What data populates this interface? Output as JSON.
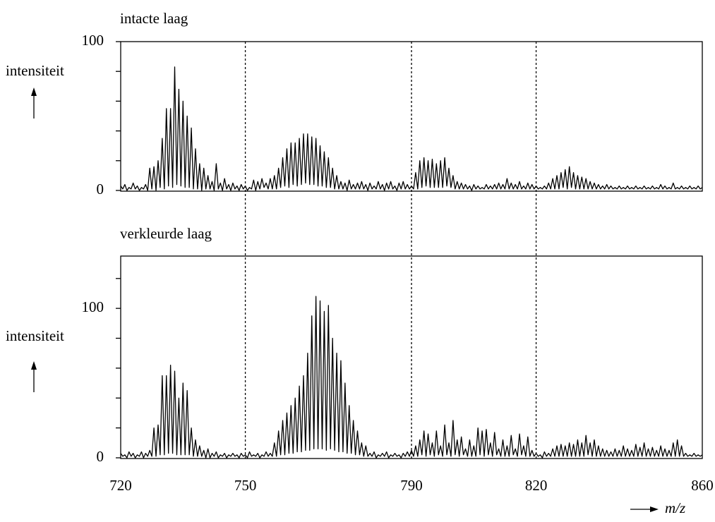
{
  "chart_data": [
    {
      "type": "line",
      "title": "intacte laag",
      "ylabel": "intensiteit",
      "xlim": [
        720,
        860
      ],
      "ylim": [
        0,
        100
      ],
      "yticks": [
        0,
        100
      ],
      "minor_yticks": [
        20,
        40,
        60,
        80
      ],
      "x": [
        720,
        720.5,
        721,
        721.5,
        722,
        722.5,
        723,
        723.5,
        724,
        724.5,
        725,
        725.5,
        726,
        726.5,
        727,
        727.5,
        728,
        728.5,
        729,
        729.5,
        730,
        730.5,
        731,
        731.5,
        732,
        732.5,
        733,
        733.5,
        734,
        734.5,
        735,
        735.5,
        736,
        736.5,
        737,
        737.5,
        738,
        738.5,
        739,
        739.5,
        740,
        740.5,
        741,
        741.5,
        742,
        742.5,
        743,
        743.5,
        744,
        744.5,
        745,
        745.5,
        746,
        746.5,
        747,
        747.5,
        748,
        748.5,
        749,
        749.5,
        750,
        750.5,
        751,
        751.5,
        752,
        752.5,
        753,
        753.5,
        754,
        754.5,
        755,
        755.5,
        756,
        756.5,
        757,
        757.5,
        758,
        758.5,
        759,
        759.5,
        760,
        760.5,
        761,
        761.5,
        762,
        762.5,
        763,
        763.5,
        764,
        764.5,
        765,
        765.5,
        766,
        766.5,
        767,
        767.5,
        768,
        768.5,
        769,
        769.5,
        770,
        770.5,
        771,
        771.5,
        772,
        772.5,
        773,
        773.5,
        774,
        774.5,
        775,
        775.5,
        776,
        776.5,
        777,
        777.5,
        778,
        778.5,
        779,
        779.5,
        780,
        780.5,
        781,
        781.5,
        782,
        782.5,
        783,
        783.5,
        784,
        784.5,
        785,
        785.5,
        786,
        786.5,
        787,
        787.5,
        788,
        788.5,
        789,
        789.5,
        790,
        790.5,
        791,
        791.5,
        792,
        792.5,
        793,
        793.5,
        794,
        794.5,
        795,
        795.5,
        796,
        796.5,
        797,
        797.5,
        798,
        798.5,
        799,
        799.5,
        800,
        800.5,
        801,
        801.5,
        802,
        802.5,
        803,
        803.5,
        804,
        804.5,
        805,
        805.5,
        806,
        806.5,
        807,
        807.5,
        808,
        808.5,
        809,
        809.5,
        810,
        810.5,
        811,
        811.5,
        812,
        812.5,
        813,
        813.5,
        814,
        814.5,
        815,
        815.5,
        816,
        816.5,
        817,
        817.5,
        818,
        818.5,
        819,
        819.5,
        820,
        820.5,
        821,
        821.5,
        822,
        822.5,
        823,
        823.5,
        824,
        824.5,
        825,
        825.5,
        826,
        826.5,
        827,
        827.5,
        828,
        828.5,
        829,
        829.5,
        830,
        830.5,
        831,
        831.5,
        832,
        832.5,
        833,
        833.5,
        834,
        834.5,
        835,
        835.5,
        836,
        836.5,
        837,
        837.5,
        838,
        838.5,
        839,
        839.5,
        840,
        840.5,
        841,
        841.5,
        842,
        842.5,
        843,
        843.5,
        844,
        844.5,
        845,
        845.5,
        846,
        846.5,
        847,
        847.5,
        848,
        848.5,
        849,
        849.5,
        850,
        850.5,
        851,
        851.5,
        852,
        852.5,
        853,
        853.5,
        854,
        854.5,
        855,
        855.5,
        856,
        856.5,
        857,
        857.5,
        858,
        858.5,
        859,
        859.5,
        860
      ],
      "series": [
        {
          "color": "#000000",
          "values": [
            3,
            1,
            4,
            0,
            2,
            1,
            5,
            1,
            3,
            0,
            2,
            1,
            4,
            0,
            15,
            1,
            16,
            0,
            20,
            2,
            35,
            1,
            55,
            3,
            55,
            2,
            83,
            4,
            68,
            3,
            60,
            2,
            50,
            2,
            42,
            1,
            28,
            1,
            18,
            0,
            15,
            1,
            10,
            1,
            6,
            0,
            18,
            1,
            5,
            0,
            8,
            1,
            4,
            0,
            5,
            1,
            3,
            0,
            4,
            1,
            3,
            0,
            2,
            1,
            7,
            0,
            6,
            1,
            8,
            2,
            5,
            1,
            8,
            1,
            10,
            1,
            15,
            2,
            22,
            3,
            28,
            2,
            32,
            4,
            32,
            3,
            35,
            4,
            38,
            5,
            38,
            4,
            36,
            4,
            35,
            3,
            30,
            3,
            26,
            2,
            22,
            2,
            15,
            1,
            10,
            1,
            6,
            1,
            5,
            0,
            7,
            1,
            4,
            1,
            5,
            1,
            6,
            1,
            4,
            0,
            5,
            1,
            3,
            1,
            6,
            1,
            4,
            0,
            5,
            1,
            6,
            1,
            3,
            0,
            5,
            1,
            6,
            1,
            4,
            1,
            3,
            1,
            12,
            1,
            20,
            2,
            22,
            3,
            20,
            2,
            21,
            2,
            18,
            2,
            20,
            2,
            22,
            3,
            15,
            2,
            10,
            1,
            6,
            1,
            5,
            1,
            4,
            1,
            3,
            0,
            4,
            1,
            3,
            1,
            2,
            1,
            4,
            1,
            3,
            1,
            4,
            1,
            5,
            1,
            4,
            1,
            8,
            1,
            5,
            1,
            4,
            1,
            6,
            1,
            3,
            1,
            5,
            1,
            4,
            1,
            3,
            1,
            2,
            1,
            3,
            1,
            5,
            1,
            8,
            1,
            10,
            1,
            12,
            2,
            14,
            1,
            16,
            2,
            12,
            1,
            10,
            1,
            9,
            1,
            8,
            1,
            6,
            1,
            5,
            1,
            4,
            1,
            3,
            1,
            4,
            1,
            3,
            1,
            2,
            1,
            3,
            1,
            2,
            1,
            3,
            1,
            2,
            1,
            3,
            1,
            2,
            1,
            3,
            1,
            2,
            1,
            3,
            1,
            2,
            1,
            4,
            1,
            3,
            1,
            2,
            1,
            5,
            1,
            2,
            1,
            3,
            1,
            2,
            1,
            3,
            1,
            2,
            1,
            3,
            1,
            2
          ]
        }
      ]
    },
    {
      "type": "line",
      "title": "verkleurde laag",
      "ylabel": "intensiteit",
      "xlabel": "m/z",
      "xlim": [
        720,
        860
      ],
      "xticks": [
        720,
        750,
        790,
        820,
        860
      ],
      "vlines": [
        750,
        790,
        820
      ],
      "ylim": [
        0,
        135
      ],
      "yticks": [
        0,
        100
      ],
      "minor_yticks": [
        20,
        40,
        60,
        80,
        120
      ],
      "x": [
        720,
        720.5,
        721,
        721.5,
        722,
        722.5,
        723,
        723.5,
        724,
        724.5,
        725,
        725.5,
        726,
        726.5,
        727,
        727.5,
        728,
        728.5,
        729,
        729.5,
        730,
        730.5,
        731,
        731.5,
        732,
        732.5,
        733,
        733.5,
        734,
        734.5,
        735,
        735.5,
        736,
        736.5,
        737,
        737.5,
        738,
        738.5,
        739,
        739.5,
        740,
        740.5,
        741,
        741.5,
        742,
        742.5,
        743,
        743.5,
        744,
        744.5,
        745,
        745.5,
        746,
        746.5,
        747,
        747.5,
        748,
        748.5,
        749,
        749.5,
        750,
        750.5,
        751,
        751.5,
        752,
        752.5,
        753,
        753.5,
        754,
        754.5,
        755,
        755.5,
        756,
        756.5,
        757,
        757.5,
        758,
        758.5,
        759,
        759.5,
        760,
        760.5,
        761,
        761.5,
        762,
        762.5,
        763,
        763.5,
        764,
        764.5,
        765,
        765.5,
        766,
        766.5,
        767,
        767.5,
        768,
        768.5,
        769,
        769.5,
        770,
        770.5,
        771,
        771.5,
        772,
        772.5,
        773,
        773.5,
        774,
        774.5,
        775,
        775.5,
        776,
        776.5,
        777,
        777.5,
        778,
        778.5,
        779,
        779.5,
        780,
        780.5,
        781,
        781.5,
        782,
        782.5,
        783,
        783.5,
        784,
        784.5,
        785,
        785.5,
        786,
        786.5,
        787,
        787.5,
        788,
        788.5,
        789,
        789.5,
        790,
        790.5,
        791,
        791.5,
        792,
        792.5,
        793,
        793.5,
        794,
        794.5,
        795,
        795.5,
        796,
        796.5,
        797,
        797.5,
        798,
        798.5,
        799,
        799.5,
        800,
        800.5,
        801,
        801.5,
        802,
        802.5,
        803,
        803.5,
        804,
        804.5,
        805,
        805.5,
        806,
        806.5,
        807,
        807.5,
        808,
        808.5,
        809,
        809.5,
        810,
        810.5,
        811,
        811.5,
        812,
        812.5,
        813,
        813.5,
        814,
        814.5,
        815,
        815.5,
        816,
        816.5,
        817,
        817.5,
        818,
        818.5,
        819,
        819.5,
        820,
        820.5,
        821,
        821.5,
        822,
        822.5,
        823,
        823.5,
        824,
        824.5,
        825,
        825.5,
        826,
        826.5,
        827,
        827.5,
        828,
        828.5,
        829,
        829.5,
        830,
        830.5,
        831,
        831.5,
        832,
        832.5,
        833,
        833.5,
        834,
        834.5,
        835,
        835.5,
        836,
        836.5,
        837,
        837.5,
        838,
        838.5,
        839,
        839.5,
        840,
        840.5,
        841,
        841.5,
        842,
        842.5,
        843,
        843.5,
        844,
        844.5,
        845,
        845.5,
        846,
        846.5,
        847,
        847.5,
        848,
        848.5,
        849,
        849.5,
        850,
        850.5,
        851,
        851.5,
        852,
        852.5,
        853,
        853.5,
        854,
        854.5,
        855,
        855.5,
        856,
        856.5,
        857,
        857.5,
        858,
        858.5,
        859,
        859.5,
        860
      ],
      "series": [
        {
          "color": "#000000",
          "values": [
            3,
            1,
            2,
            0,
            4,
            1,
            3,
            0,
            2,
            1,
            4,
            0,
            3,
            1,
            5,
            1,
            20,
            1,
            22,
            2,
            55,
            2,
            55,
            3,
            62,
            3,
            58,
            2,
            40,
            2,
            50,
            2,
            45,
            2,
            20,
            1,
            12,
            1,
            8,
            1,
            5,
            0,
            6,
            0,
            3,
            1,
            4,
            0,
            2,
            1,
            3,
            0,
            2,
            1,
            3,
            1,
            2,
            0,
            3,
            1,
            2,
            0,
            4,
            1,
            2,
            1,
            3,
            0,
            2,
            1,
            4,
            1,
            3,
            1,
            10,
            1,
            18,
            2,
            25,
            2,
            30,
            3,
            35,
            3,
            40,
            4,
            48,
            4,
            55,
            5,
            70,
            5,
            95,
            6,
            108,
            6,
            105,
            6,
            98,
            5,
            102,
            6,
            80,
            5,
            70,
            4,
            65,
            4,
            50,
            3,
            35,
            3,
            25,
            2,
            18,
            2,
            10,
            1,
            8,
            1,
            3,
            1,
            4,
            0,
            2,
            1,
            3,
            1,
            4,
            0,
            2,
            1,
            3,
            1,
            2,
            0,
            3,
            1,
            4,
            1,
            5,
            1,
            8,
            1,
            12,
            2,
            18,
            1,
            16,
            2,
            10,
            1,
            18,
            2,
            8,
            1,
            22,
            2,
            10,
            1,
            25,
            2,
            12,
            1,
            14,
            2,
            6,
            1,
            12,
            1,
            8,
            1,
            20,
            2,
            18,
            1,
            19,
            2,
            10,
            1,
            17,
            2,
            6,
            1,
            12,
            1,
            8,
            1,
            15,
            2,
            6,
            1,
            16,
            2,
            8,
            1,
            14,
            1,
            5,
            1,
            3,
            1,
            2,
            0,
            4,
            1,
            3,
            1,
            6,
            1,
            8,
            1,
            9,
            1,
            8,
            1,
            10,
            1,
            9,
            1,
            12,
            1,
            10,
            1,
            15,
            2,
            10,
            1,
            12,
            1,
            8,
            1,
            6,
            1,
            5,
            1,
            4,
            1,
            6,
            1,
            5,
            1,
            8,
            1,
            6,
            1,
            5,
            1,
            9,
            1,
            7,
            1,
            10,
            1,
            6,
            1,
            7,
            1,
            5,
            1,
            8,
            1,
            6,
            1,
            5,
            1,
            10,
            1,
            12,
            1,
            8,
            1,
            3,
            1,
            2,
            1,
            3,
            1,
            2,
            1,
            2
          ]
        }
      ]
    }
  ]
}
